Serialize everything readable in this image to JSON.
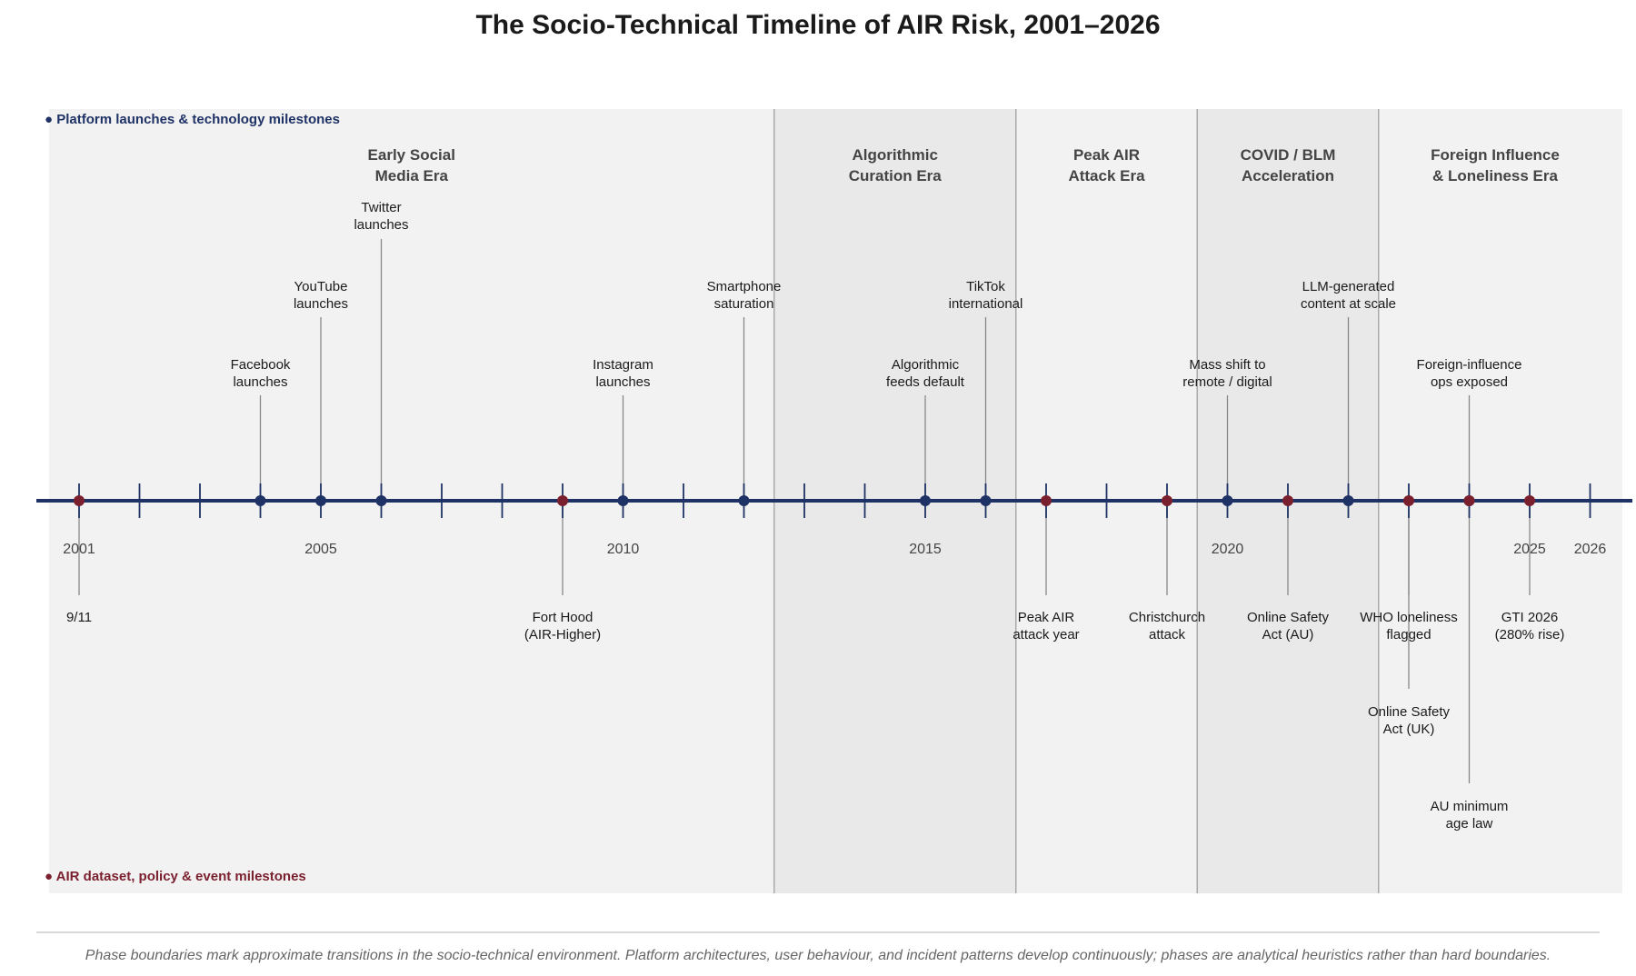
{
  "title": "The Socio-Technical Timeline of AIR Risk, 2001–2026",
  "legend": {
    "top": "● Platform launches & technology milestones",
    "bottom": "● AIR dataset, policy & event milestones"
  },
  "colors": {
    "axis": "#1f3266",
    "tech": "#1f3266",
    "policy": "#7a1f2e",
    "phase_light": "#f2f2f2",
    "phase_dark": "#e9e9e9",
    "connector": "#888888"
  },
  "axis": {
    "start": 2001,
    "end": 2026,
    "labeled_years": [
      2001,
      2005,
      2010,
      2015,
      2020,
      2025,
      2026
    ]
  },
  "phases": [
    {
      "start": 2000.5,
      "end": 2012.5,
      "label": [
        "Early Social",
        "Media Era"
      ],
      "shade": "light"
    },
    {
      "start": 2012.5,
      "end": 2016.5,
      "label": [
        "Algorithmic",
        "Curation Era"
      ],
      "shade": "dark"
    },
    {
      "start": 2016.5,
      "end": 2019.5,
      "label": [
        "Peak AIR",
        "Attack Era"
      ],
      "shade": "light"
    },
    {
      "start": 2019.5,
      "end": 2022.5,
      "label": [
        "COVID / BLM",
        "Acceleration"
      ],
      "shade": "dark"
    },
    {
      "start": 2022.5,
      "end": 2027.0,
      "label": [
        "Foreign Influence",
        "& Loneliness Era"
      ],
      "shade": "light"
    }
  ],
  "tech_events": [
    {
      "year": 2004,
      "tier": 1,
      "label": [
        "Facebook",
        "launches"
      ]
    },
    {
      "year": 2005,
      "tier": 2,
      "label": [
        "YouTube",
        "launches"
      ]
    },
    {
      "year": 2006,
      "tier": 3,
      "label": [
        "Twitter",
        "launches"
      ]
    },
    {
      "year": 2010,
      "tier": 1,
      "label": [
        "Instagram",
        "launches"
      ]
    },
    {
      "year": 2012,
      "tier": 2,
      "label": [
        "Smartphone",
        "saturation"
      ]
    },
    {
      "year": 2015,
      "tier": 1,
      "label": [
        "Algorithmic",
        "feeds default"
      ]
    },
    {
      "year": 2016,
      "tier": 2,
      "label": [
        "TikTok",
        "international"
      ]
    },
    {
      "year": 2020,
      "tier": 1,
      "label": [
        "Mass shift to",
        "remote / digital"
      ]
    },
    {
      "year": 2022,
      "tier": 2,
      "label": [
        "LLM-generated",
        "content at scale"
      ]
    },
    {
      "year": 2024,
      "tier": 1,
      "label": [
        "Foreign-influence",
        "ops exposed"
      ]
    }
  ],
  "policy_events": [
    {
      "year": 2001,
      "tier": 1,
      "label": [
        "9/11"
      ]
    },
    {
      "year": 2009,
      "tier": 1,
      "label": [
        "Fort Hood",
        "(AIR-Higher)"
      ]
    },
    {
      "year": 2017,
      "tier": 1,
      "label": [
        "Peak AIR",
        "attack year"
      ]
    },
    {
      "year": 2019,
      "tier": 1,
      "label": [
        "Christchurch",
        "attack"
      ]
    },
    {
      "year": 2021,
      "tier": 1,
      "label": [
        "Online Safety",
        "Act (AU)"
      ]
    },
    {
      "year": 2023,
      "tier": 1,
      "label": [
        "WHO loneliness",
        "flagged"
      ]
    },
    {
      "year": 2023,
      "tier": 2,
      "label": [
        "Online Safety",
        "Act (UK)"
      ],
      "marker": false
    },
    {
      "year": 2024,
      "tier": 3,
      "label": [
        "AU minimum",
        "age law"
      ]
    },
    {
      "year": 2025,
      "tier": 1,
      "label": [
        "GTI 2026",
        "(280% rise)"
      ]
    }
  ],
  "footnote": "Phase boundaries mark approximate transitions in the socio-technical environment. Platform architectures, user behaviour, and incident patterns develop continuously; phases are analytical heuristics rather than hard boundaries."
}
